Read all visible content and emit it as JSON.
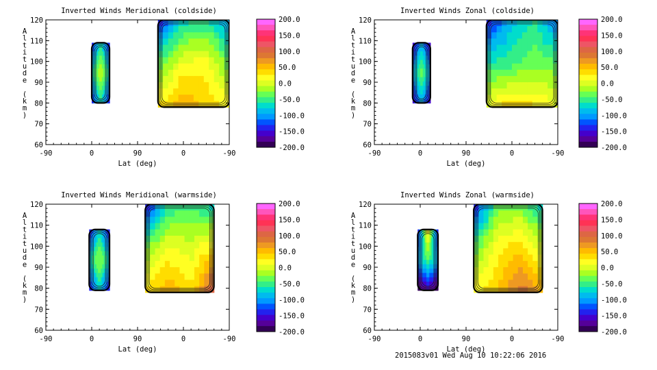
{
  "figure": {
    "footer": "2015083v01 Wed Aug 10 10:22:06 2016"
  },
  "colorbar": {
    "labels": [
      "200.0",
      "150.0",
      "100.0",
      "50.0",
      "0.0",
      "-50.0",
      "-100.0",
      "-150.0",
      "-200.0"
    ],
    "colors": [
      "#ff66ff",
      "#ff55bb",
      "#ff3377",
      "#ff3355",
      "#ee5566",
      "#dd6644",
      "#dd7733",
      "#ee9922",
      "#ffbb00",
      "#ffdd00",
      "#ffff22",
      "#ddff22",
      "#aaff22",
      "#66ff55",
      "#33ee88",
      "#00ddcc",
      "#00bbee",
      "#0099ff",
      "#0055ff",
      "#2222ee",
      "#4400cc",
      "#550099",
      "#330055"
    ]
  },
  "chart_data": [
    {
      "type": "contour",
      "title": "Inverted Winds Meridional (coldside)",
      "xlabel": "Lat (deg)",
      "ylabel": "Altitude (km)",
      "xticks": [
        "-90",
        "0",
        "90",
        "0",
        "-90"
      ],
      "yticks": [
        "60",
        "70",
        "80",
        "90",
        "100",
        "110",
        "120"
      ],
      "ylim": [
        60,
        120
      ],
      "colorbar": {
        "min": -200,
        "max": 200
      },
      "regions": [
        {
          "x": [
            0,
            35
          ],
          "y": [
            80,
            109
          ],
          "z": [
            [
              -150,
              -60,
              -150
            ],
            [
              -60,
              -10,
              -60
            ],
            [
              -150,
              -60,
              -150
            ]
          ]
        },
        {
          "x": [
            130,
            270
          ],
          "y": [
            78,
            120
          ],
          "z": [
            [
              -150,
              -70,
              -60,
              -100
            ],
            [
              -40,
              10,
              20,
              -40
            ],
            [
              30,
              60,
              40,
              20
            ]
          ]
        }
      ]
    },
    {
      "type": "contour",
      "title": "Inverted Winds Zonal (coldside)",
      "xlabel": "Lat (deg)",
      "ylabel": "Altitude (km)",
      "xticks": [
        "-90",
        "0",
        "90",
        "0",
        "-90"
      ],
      "yticks": [
        "60",
        "70",
        "80",
        "90",
        "100",
        "110",
        "120"
      ],
      "ylim": [
        60,
        120
      ],
      "colorbar": {
        "min": -200,
        "max": 200
      },
      "regions": [
        {
          "x": [
            -15,
            20
          ],
          "y": [
            80,
            109
          ],
          "z": [
            [
              -170,
              -90,
              -170
            ],
            [
              -90,
              -30,
              -90
            ],
            [
              -170,
              -90,
              -170
            ]
          ]
        },
        {
          "x": [
            130,
            270
          ],
          "y": [
            78,
            120
          ],
          "z": [
            [
              -150,
              -90,
              -60,
              -120
            ],
            [
              -60,
              -50,
              -30,
              -40
            ],
            [
              10,
              40,
              30,
              10
            ]
          ]
        }
      ]
    },
    {
      "type": "contour",
      "title": "Inverted Winds Meridional (warmside)",
      "xlabel": "Lat (deg)",
      "ylabel": "Altitude (km)",
      "xticks": [
        "-90",
        "0",
        "90",
        "0",
        "-90"
      ],
      "yticks": [
        "60",
        "70",
        "80",
        "90",
        "100",
        "110",
        "120"
      ],
      "ylim": [
        60,
        120
      ],
      "colorbar": {
        "min": -200,
        "max": 200
      },
      "regions": [
        {
          "x": [
            -5,
            35
          ],
          "y": [
            79,
            108
          ],
          "z": [
            [
              -160,
              -70,
              -160
            ],
            [
              -70,
              -20,
              -70
            ],
            [
              -160,
              -70,
              -160
            ]
          ]
        },
        {
          "x": [
            105,
            240
          ],
          "y": [
            78,
            120
          ],
          "z": [
            [
              -150,
              -60,
              -50,
              -70
            ],
            [
              -30,
              10,
              0,
              30
            ],
            [
              30,
              60,
              30,
              120
            ]
          ]
        }
      ]
    },
    {
      "type": "contour",
      "title": "Inverted Winds Zonal (warmside)",
      "xlabel": "Lat (deg)",
      "ylabel": "Altitude (km)",
      "xticks": [
        "-90",
        "0",
        "90",
        "0",
        "-90"
      ],
      "yticks": [
        "60",
        "70",
        "80",
        "90",
        "100",
        "110",
        "120"
      ],
      "ylim": [
        60,
        120
      ],
      "colorbar": {
        "min": -200,
        "max": 200
      },
      "regions": [
        {
          "x": [
            -5,
            35
          ],
          "y": [
            79,
            108
          ],
          "z": [
            [
              -150,
              30,
              -150
            ],
            [
              -100,
              -40,
              -100
            ],
            [
              -200,
              -170,
              -200
            ]
          ]
        },
        {
          "x": [
            105,
            240
          ],
          "y": [
            78,
            120
          ],
          "z": [
            [
              -150,
              -40,
              -30,
              -80
            ],
            [
              -40,
              20,
              40,
              0
            ],
            [
              20,
              40,
              90,
              60
            ]
          ]
        }
      ]
    }
  ]
}
